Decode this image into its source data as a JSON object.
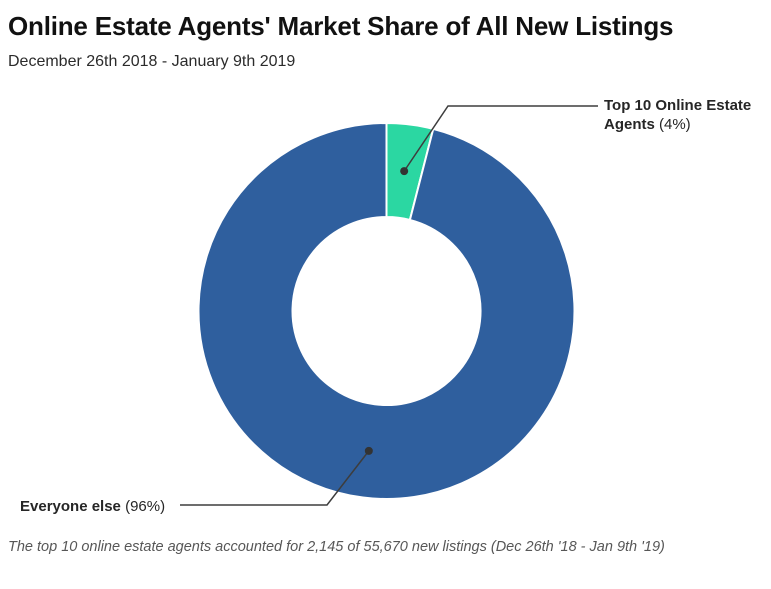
{
  "header": {
    "title": "Online Estate Agents' Market Share of All New Listings",
    "subtitle": "December 26th 2018 - January 9th 2019"
  },
  "chart_data": {
    "type": "pie",
    "subtype": "donut",
    "title": "Online Estate Agents' Market Share of All New Listings",
    "subtitle": "December 26th 2018 - January 9th 2019",
    "slices": [
      {
        "name": "Top 10 Online Estate Agents",
        "pct": 4,
        "color": "#2bd7a2"
      },
      {
        "name": "Everyone else",
        "pct": 96,
        "color": "#2f5f9e"
      }
    ],
    "absolute_values": {
      "top10_new_listings": 2145,
      "total_new_listings": 55670
    },
    "start_angle_deg": 0,
    "donut_hole_ratio": 0.5,
    "legend": "callout-labels",
    "slice_border_color": "#ffffff",
    "callout_line_color": "#3d3d3d"
  },
  "annotations": {
    "top10": {
      "bold": "Top 10 Online Estate Agents",
      "rest": " (4%)"
    },
    "everyone": {
      "bold": "Everyone else",
      "rest": " (96%)"
    }
  },
  "footnote": "The top 10 online estate agents accounted for 2,145 of 55,670 new listings (Dec 26th '18 - Jan 9th '19)"
}
